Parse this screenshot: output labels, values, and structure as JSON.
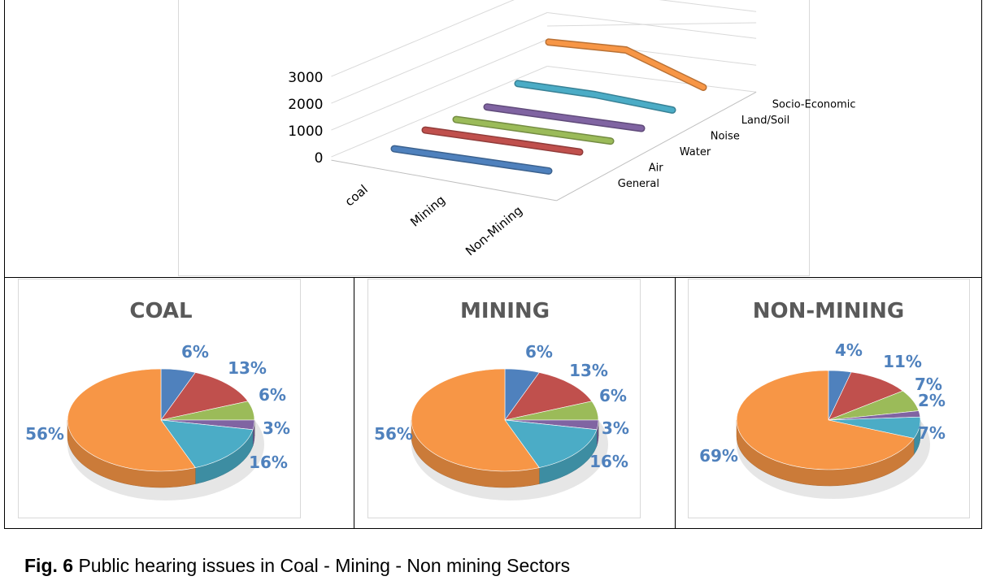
{
  "caption": {
    "fig": "Fig. 6",
    "text": "Public hearing issues in Coal - Mining - Non mining Sectors"
  },
  "chart_data": [
    {
      "type": "line",
      "title": "",
      "categories": [
        "coal",
        "Mining",
        "Non-Mining"
      ],
      "y_ticks": [
        "0",
        "1000",
        "2000",
        "3000"
      ],
      "ylim": [
        0,
        3000
      ],
      "series": [
        {
          "name": "General",
          "color": "#4f81bd",
          "values": [
            150,
            130,
            110
          ]
        },
        {
          "name": "Air",
          "color": "#c0504d",
          "values": [
            300,
            290,
            270
          ]
        },
        {
          "name": "Water",
          "color": "#9bbb59",
          "values": [
            150,
            140,
            130
          ]
        },
        {
          "name": "Noise",
          "color": "#8064a2",
          "values": [
            70,
            65,
            60
          ]
        },
        {
          "name": "Land/Soil",
          "color": "#4bacc6",
          "values": [
            400,
            380,
            200
          ]
        },
        {
          "name": "Socio-Economic",
          "color": "#f79646",
          "values": [
            1400,
            1500,
            500
          ]
        }
      ]
    },
    {
      "type": "pie",
      "title": "COAL",
      "labels": [
        "6%",
        "13%",
        "6%",
        "3%",
        "16%",
        "56%"
      ],
      "values": [
        6,
        13,
        6,
        3,
        16,
        56
      ],
      "colors": [
        "#4f81bd",
        "#c0504d",
        "#9bbb59",
        "#8064a2",
        "#4bacc6",
        "#f79646"
      ]
    },
    {
      "type": "pie",
      "title": "MINING",
      "labels": [
        "6%",
        "13%",
        "6%",
        "3%",
        "16%",
        "56%"
      ],
      "values": [
        6,
        13,
        6,
        3,
        16,
        56
      ],
      "colors": [
        "#4f81bd",
        "#c0504d",
        "#9bbb59",
        "#8064a2",
        "#4bacc6",
        "#f79646"
      ]
    },
    {
      "type": "pie",
      "title": "NON-MINING",
      "labels": [
        "4%",
        "11%",
        "7%",
        "2%",
        "7%",
        "69%"
      ],
      "values": [
        4,
        11,
        7,
        2,
        7,
        69
      ],
      "colors": [
        "#4f81bd",
        "#c0504d",
        "#9bbb59",
        "#8064a2",
        "#4bacc6",
        "#f79646"
      ]
    }
  ]
}
